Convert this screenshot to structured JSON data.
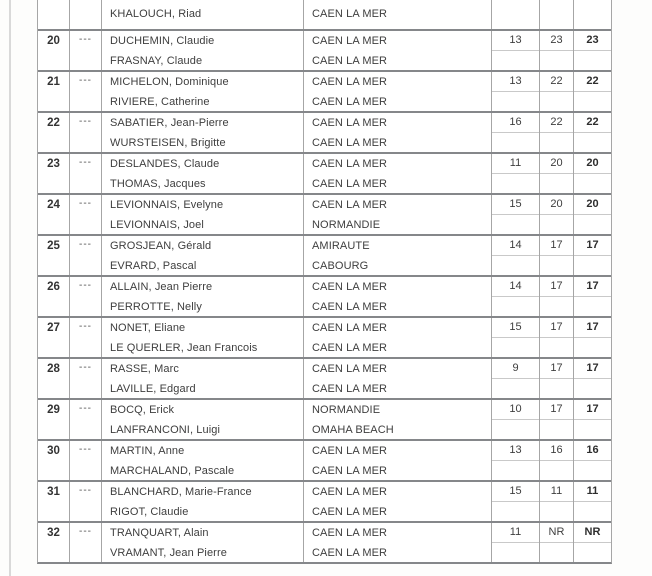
{
  "document": {
    "partial_top_row": {
      "player": "KHALOUCH, Riad",
      "club": "CAEN LA MER"
    },
    "table": {
      "dash": "---",
      "rows": [
        {
          "rank": "20",
          "p1": "DUCHEMIN, Claudie",
          "c1": "CAEN LA MER",
          "p2": "FRASNAY, Claude",
          "c2": "CAEN LA MER",
          "v1": "13",
          "v2": "23",
          "total": "23"
        },
        {
          "rank": "21",
          "p1": "MICHELON, Dominique",
          "c1": "CAEN LA MER",
          "p2": "RIVIERE, Catherine",
          "c2": "CAEN LA MER",
          "v1": "13",
          "v2": "22",
          "total": "22"
        },
        {
          "rank": "22",
          "p1": "SABATIER, Jean-Pierre",
          "c1": "CAEN LA MER",
          "p2": "WURSTEISEN, Brigitte",
          "c2": "CAEN LA MER",
          "v1": "16",
          "v2": "22",
          "total": "22"
        },
        {
          "rank": "23",
          "p1": "DESLANDES, Claude",
          "c1": "CAEN LA MER",
          "p2": "THOMAS, Jacques",
          "c2": "CAEN LA MER",
          "v1": "11",
          "v2": "20",
          "total": "20"
        },
        {
          "rank": "24",
          "p1": "LEVIONNAIS, Evelyne",
          "c1": "CAEN LA MER",
          "p2": "LEVIONNAIS, Joel",
          "c2": "NORMANDIE",
          "v1": "15",
          "v2": "20",
          "total": "20"
        },
        {
          "rank": "25",
          "p1": "GROSJEAN, Gérald",
          "c1": "AMIRAUTE",
          "p2": "EVRARD, Pascal",
          "c2": "CABOURG",
          "v1": "14",
          "v2": "17",
          "total": "17"
        },
        {
          "rank": "26",
          "p1": "ALLAIN, Jean Pierre",
          "c1": "CAEN LA MER",
          "p2": "PERROTTE, Nelly",
          "c2": "CAEN LA MER",
          "v1": "14",
          "v2": "17",
          "total": "17"
        },
        {
          "rank": "27",
          "p1": "NONET, Eliane",
          "c1": "CAEN LA MER",
          "p2": "LE QUERLER, Jean Francois",
          "c2": "CAEN LA MER",
          "v1": "15",
          "v2": "17",
          "total": "17"
        },
        {
          "rank": "28",
          "p1": "RASSE, Marc",
          "c1": "CAEN LA MER",
          "p2": "LAVILLE, Edgard",
          "c2": "CAEN LA MER",
          "v1": "9",
          "v2": "17",
          "total": "17"
        },
        {
          "rank": "29",
          "p1": "BOCQ, Erick",
          "c1": "NORMANDIE",
          "p2": "LANFRANCONI, Luigi",
          "c2": "OMAHA BEACH",
          "v1": "10",
          "v2": "17",
          "total": "17"
        },
        {
          "rank": "30",
          "p1": "MARTIN, Anne",
          "c1": "CAEN LA MER",
          "p2": "MARCHALAND, Pascale",
          "c2": "CAEN LA MER",
          "v1": "13",
          "v2": "16",
          "total": "16"
        },
        {
          "rank": "31",
          "p1": "BLANCHARD, Marie-France",
          "c1": "CAEN LA MER",
          "p2": "RIGOT, Claudie",
          "c2": "CAEN LA MER",
          "v1": "15",
          "v2": "11",
          "total": "11"
        },
        {
          "rank": "32",
          "p1": "TRANQUART, Alain",
          "c1": "CAEN LA MER",
          "p2": "VRAMANT, Jean Pierre",
          "c2": "CAEN LA MER",
          "v1": "11",
          "v2": "NR",
          "total": "NR"
        }
      ]
    },
    "colors": {
      "text": "#3e3e3e",
      "group_separator": "#85878a",
      "vertical_border": "#a6a6a6",
      "subcell_divider": "#c9c9c9",
      "page_edge_line": "#d9d9d9"
    }
  }
}
